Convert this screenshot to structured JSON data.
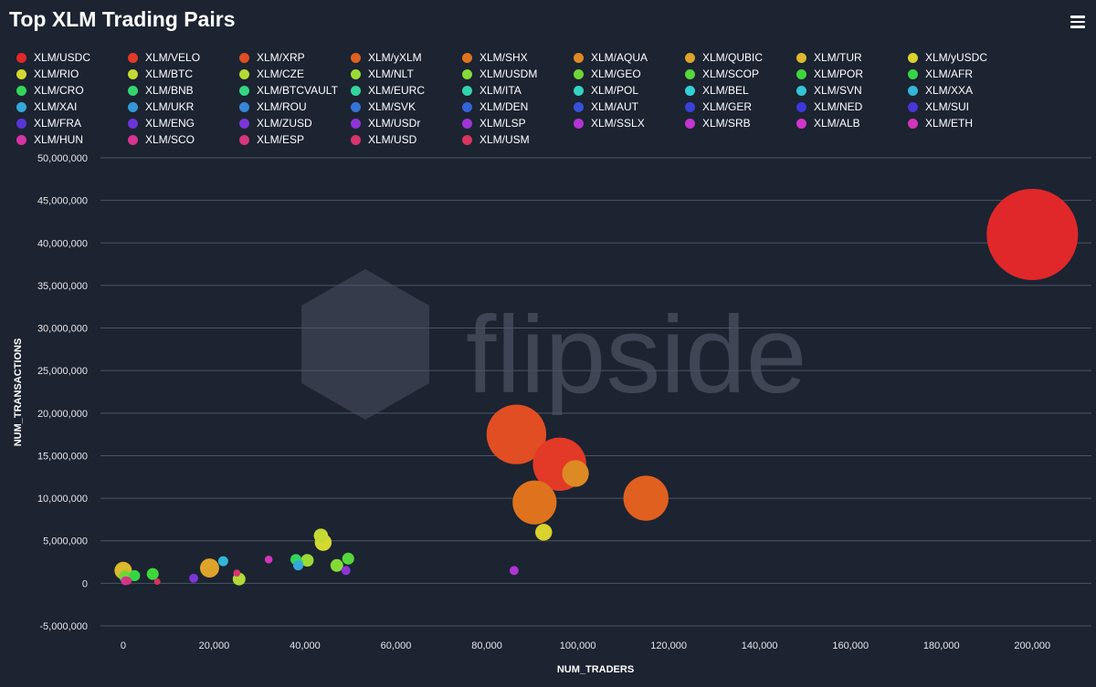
{
  "title": "Top XLM Trading Pairs",
  "menu_icon": "hamburger-menu-icon",
  "watermark": "flipside",
  "colors": {
    "background": "#1c2331",
    "grid": "#4b5563",
    "text": "#ffffff"
  },
  "legend": [
    {
      "label": "XLM/USDC",
      "color": "#e0282b"
    },
    {
      "label": "XLM/VELO",
      "color": "#e23a27"
    },
    {
      "label": "XLM/XRP",
      "color": "#e14e23"
    },
    {
      "label": "XLM/yXLM",
      "color": "#e0601f"
    },
    {
      "label": "XLM/SHX",
      "color": "#df731d"
    },
    {
      "label": "XLM/AQUA",
      "color": "#de8a24"
    },
    {
      "label": "XLM/QUBIC",
      "color": "#dda32b"
    },
    {
      "label": "XLM/TUR",
      "color": "#dcb92d"
    },
    {
      "label": "XLM/yUSDC",
      "color": "#d9d22f"
    },
    {
      "label": "XLM/RIO",
      "color": "#d4d830"
    },
    {
      "label": "XLM/BTC",
      "color": "#c4d932"
    },
    {
      "label": "XLM/CZE",
      "color": "#b1da34"
    },
    {
      "label": "XLM/NLT",
      "color": "#9bdb36"
    },
    {
      "label": "XLM/USDM",
      "color": "#84db37"
    },
    {
      "label": "XLM/GEO",
      "color": "#6fd638"
    },
    {
      "label": "XLM/SCOP",
      "color": "#55d63a"
    },
    {
      "label": "XLM/POR",
      "color": "#3fd63b"
    },
    {
      "label": "XLM/AFR",
      "color": "#35d646"
    },
    {
      "label": "XLM/CRO",
      "color": "#33d559"
    },
    {
      "label": "XLM/BNB",
      "color": "#33d56e"
    },
    {
      "label": "XLM/BTCVAULT",
      "color": "#33d583"
    },
    {
      "label": "XLM/EURC",
      "color": "#33d499"
    },
    {
      "label": "XLM/ITA",
      "color": "#33d3ad"
    },
    {
      "label": "XLM/POL",
      "color": "#33d2c2"
    },
    {
      "label": "XLM/BEL",
      "color": "#33d0d4"
    },
    {
      "label": "XLM/SVN",
      "color": "#33c5d6"
    },
    {
      "label": "XLM/XXA",
      "color": "#33b6d8"
    },
    {
      "label": "XLM/XAI",
      "color": "#35a7d8"
    },
    {
      "label": "XLM/UKR",
      "color": "#3597d8"
    },
    {
      "label": "XLM/ROU",
      "color": "#3586d8"
    },
    {
      "label": "XLM/SVK",
      "color": "#3575d8"
    },
    {
      "label": "XLM/DEN",
      "color": "#3564d8"
    },
    {
      "label": "XLM/AUT",
      "color": "#3553d8"
    },
    {
      "label": "XLM/GER",
      "color": "#3743d8"
    },
    {
      "label": "XLM/NED",
      "color": "#3d37d8"
    },
    {
      "label": "XLM/SUI",
      "color": "#4a35d6"
    },
    {
      "label": "XLM/FRA",
      "color": "#5935d6"
    },
    {
      "label": "XLM/ENG",
      "color": "#6a35d6"
    },
    {
      "label": "XLM/ZUSD",
      "color": "#7c35d6"
    },
    {
      "label": "XLM/USDr",
      "color": "#8d35d6"
    },
    {
      "label": "XLM/LSP",
      "color": "#9f35d6"
    },
    {
      "label": "XLM/SSLX",
      "color": "#b035d4"
    },
    {
      "label": "XLM/SRB",
      "color": "#c135d0"
    },
    {
      "label": "XLM/ALB",
      "color": "#d135c8"
    },
    {
      "label": "XLM/ETH",
      "color": "#d535b8"
    },
    {
      "label": "XLM/HUN",
      "color": "#d535a4"
    },
    {
      "label": "XLM/SCO",
      "color": "#d63592"
    },
    {
      "label": "XLM/ESP",
      "color": "#d63580"
    },
    {
      "label": "XLM/USD",
      "color": "#d6356e"
    },
    {
      "label": "XLM/USM",
      "color": "#d6355c"
    }
  ],
  "chart_data": {
    "type": "scatter",
    "bubble": true,
    "title": "Top XLM Trading Pairs",
    "xlabel": "NUM_TRADERS",
    "ylabel": "NUM_TRANSACTIONS",
    "xlim": [
      -5000,
      213000
    ],
    "ylim": [
      -5000000,
      50000000
    ],
    "x_ticks": [
      0,
      20000,
      40000,
      60000,
      80000,
      100000,
      120000,
      140000,
      160000,
      180000,
      200000
    ],
    "x_tick_labels": [
      "0",
      "20,000",
      "40,000",
      "60,000",
      "80,000",
      "100,000",
      "120,000",
      "140,000",
      "160,000",
      "180,000",
      "200,000"
    ],
    "y_ticks": [
      -5000000,
      0,
      5000000,
      10000000,
      15000000,
      20000000,
      25000000,
      30000000,
      35000000,
      40000000,
      45000000,
      50000000
    ],
    "y_tick_labels": [
      "-5,000,000",
      "0",
      "5,000,000",
      "10,000,000",
      "15,000,000",
      "20,000,000",
      "25,000,000",
      "30,000,000",
      "35,000,000",
      "40,000,000",
      "45,000,000",
      "50,000,000"
    ],
    "grid": true,
    "legend_position": "top",
    "points": [
      {
        "name": "XLM/USDC",
        "x": 200000,
        "y": 41000000,
        "size": 41000000,
        "color": "#e0282b"
      },
      {
        "name": "XLM/VELO",
        "x": 96000,
        "y": 14000000,
        "size": 14000000,
        "color": "#e23a27"
      },
      {
        "name": "XLM/XRP",
        "x": 86500,
        "y": 17500000,
        "size": 17500000,
        "color": "#e14e23"
      },
      {
        "name": "XLM/yXLM",
        "x": 115000,
        "y": 10000000,
        "size": 10000000,
        "color": "#e0601f"
      },
      {
        "name": "XLM/SHX",
        "x": 90500,
        "y": 9500000,
        "size": 9500000,
        "color": "#df731d"
      },
      {
        "name": "XLM/AQUA",
        "x": 99500,
        "y": 12900000,
        "size": 3500000,
        "color": "#de8a24"
      },
      {
        "name": "XLM/QUBIC",
        "x": 19000,
        "y": 1800000,
        "size": 1800000,
        "color": "#dda32b"
      },
      {
        "name": "XLM/TUR",
        "x": 0,
        "y": 1500000,
        "size": 1500000,
        "color": "#dcb92d"
      },
      {
        "name": "XLM/yUSDC",
        "x": 92500,
        "y": 6000000,
        "size": 1400000,
        "color": "#d9d22f"
      },
      {
        "name": "XLM/RIO",
        "x": 44000,
        "y": 4800000,
        "size": 1400000,
        "color": "#d4d830"
      },
      {
        "name": "XLM/BTC",
        "x": 43500,
        "y": 5600000,
        "size": 1000000,
        "color": "#c4d932"
      },
      {
        "name": "XLM/CZE",
        "x": 25500,
        "y": 500000,
        "size": 800000,
        "color": "#b1da34"
      },
      {
        "name": "XLM/NLT",
        "x": 40500,
        "y": 2700000,
        "size": 800000,
        "color": "#9bdb36"
      },
      {
        "name": "XLM/USDM",
        "x": 47000,
        "y": 2100000,
        "size": 800000,
        "color": "#84db37"
      },
      {
        "name": "XLM/GEO",
        "x": 400,
        "y": 800000,
        "size": 700000,
        "color": "#6fd638"
      },
      {
        "name": "XLM/SCOP",
        "x": 49500,
        "y": 2900000,
        "size": 700000,
        "color": "#55d63a"
      },
      {
        "name": "XLM/POR",
        "x": 6500,
        "y": 1100000,
        "size": 700000,
        "color": "#3fd63b"
      },
      {
        "name": "XLM/AFR",
        "x": 2500,
        "y": 900000,
        "size": 600000,
        "color": "#35d646"
      },
      {
        "name": "XLM/CRO",
        "x": 38000,
        "y": 2800000,
        "size": 600000,
        "color": "#33d559"
      },
      {
        "name": "XLM/BNB",
        "x": 38500,
        "y": 2400000,
        "size": 500000,
        "color": "#33d56e"
      },
      {
        "name": "XLM/XXA",
        "x": 22000,
        "y": 2600000,
        "size": 500000,
        "color": "#33b6d8"
      },
      {
        "name": "XLM/XAI",
        "x": 38500,
        "y": 2100000,
        "size": 500000,
        "color": "#35a7d8"
      },
      {
        "name": "XLM/ZUSD",
        "x": 15500,
        "y": 600000,
        "size": 400000,
        "color": "#7c35d6"
      },
      {
        "name": "XLM/USDr",
        "x": 49000,
        "y": 1500000,
        "size": 400000,
        "color": "#8d35d6"
      },
      {
        "name": "XLM/SSLX",
        "x": 86000,
        "y": 1500000,
        "size": 400000,
        "color": "#b035d4"
      },
      {
        "name": "XLM/ETH",
        "x": 32000,
        "y": 2800000,
        "size": 300000,
        "color": "#d535b8"
      },
      {
        "name": "XLM/HUN",
        "x": 500,
        "y": 300000,
        "size": 400000,
        "color": "#d535a4"
      },
      {
        "name": "XLM/ESP",
        "x": 1000,
        "y": 300000,
        "size": 300000,
        "color": "#d63580"
      },
      {
        "name": "XLM/USD",
        "x": 25000,
        "y": 1200000,
        "size": 250000,
        "color": "#d6356e"
      },
      {
        "name": "XLM/USM",
        "x": 7500,
        "y": 200000,
        "size": 150000,
        "color": "#d6355c"
      }
    ]
  }
}
